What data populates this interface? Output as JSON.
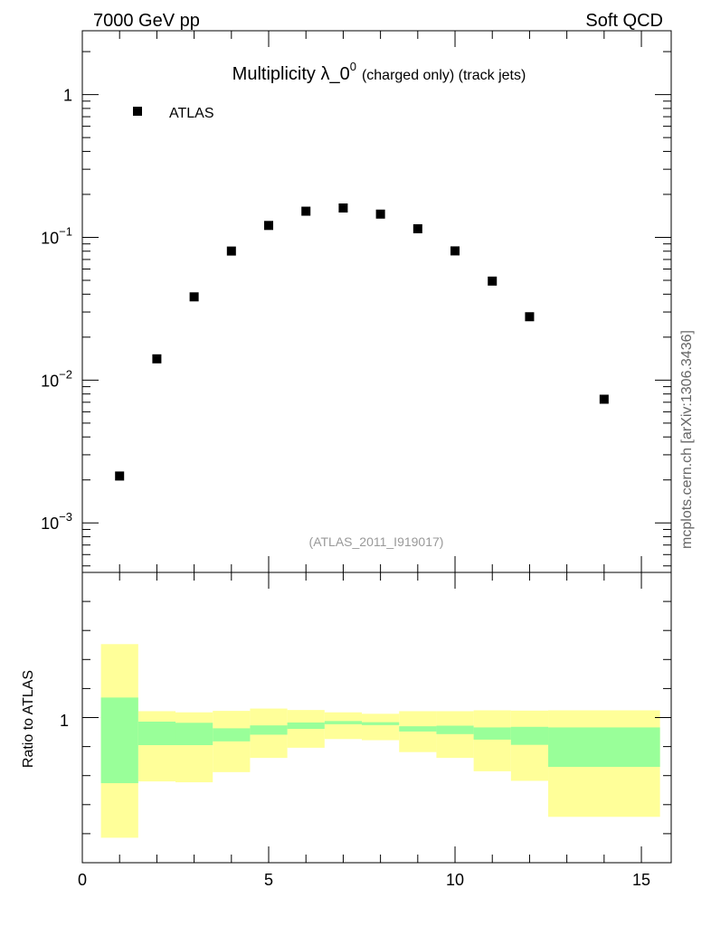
{
  "header": {
    "energy_label": "7000 GeV pp",
    "category_label": "Soft QCD"
  },
  "side_label": "mcplots.cern.ch [arXiv:1306.3436]",
  "chart_data": [
    {
      "type": "scatter",
      "title_main": "Multiplicity λ_0",
      "title_sup": "0",
      "title_rest": "(charged only) (track jets)",
      "watermark": "(ATLAS_2011_I919017)",
      "yscale": "log",
      "xlim": [
        0,
        15.8
      ],
      "ylim": [
        0.00045,
        2.8
      ],
      "ytick_labels": [
        {
          "value": 1,
          "base": "1",
          "exp": ""
        },
        {
          "value": 0.1,
          "base": "10",
          "exp": "−1"
        },
        {
          "value": 0.01,
          "base": "10",
          "exp": "−2"
        },
        {
          "value": 0.001,
          "base": "10",
          "exp": "−3"
        }
      ],
      "legend": {
        "position": "top-left",
        "entries": [
          "ATLAS"
        ]
      },
      "series": [
        {
          "name": "ATLAS",
          "color": "#000000",
          "x": [
            1,
            2,
            3,
            4,
            5,
            6,
            7,
            8,
            9,
            10,
            11,
            12,
            14
          ],
          "y": [
            0.00213,
            0.0141,
            0.0383,
            0.0802,
            0.1212,
            0.1525,
            0.1606,
            0.1455,
            0.1149,
            0.0804,
            0.0494,
            0.0278,
            0.00735
          ]
        }
      ]
    },
    {
      "type": "area",
      "ylabel": "Ratio to ATLAS",
      "xlim": [
        0,
        15.8
      ],
      "ylim": [
        0.5,
        1.5
      ],
      "xtick_labels": [
        "0",
        "5",
        "10",
        "15"
      ],
      "ytick_labels": [
        "1"
      ],
      "colors": {
        "outer_band": "#ffff99",
        "inner_band": "#99ff99"
      },
      "bins": [
        {
          "x0": 0.5,
          "x1": 1.5,
          "outer": [
            0.586,
            1.253
          ],
          "inner": [
            0.774,
            1.069
          ]
        },
        {
          "x0": 1.5,
          "x1": 2.5,
          "outer": [
            0.78,
            1.022
          ],
          "inner": [
            0.905,
            0.986
          ]
        },
        {
          "x0": 2.5,
          "x1": 3.5,
          "outer": [
            0.777,
            1.018
          ],
          "inner": [
            0.905,
            0.982
          ]
        },
        {
          "x0": 3.5,
          "x1": 4.5,
          "outer": [
            0.812,
            1.023
          ],
          "inner": [
            0.918,
            0.963
          ]
        },
        {
          "x0": 4.5,
          "x1": 5.5,
          "outer": [
            0.861,
            1.031
          ],
          "inner": [
            0.941,
            0.973
          ]
        },
        {
          "x0": 5.5,
          "x1": 6.5,
          "outer": [
            0.896,
            1.026
          ],
          "inner": [
            0.961,
            0.983
          ]
        },
        {
          "x0": 6.5,
          "x1": 7.5,
          "outer": [
            0.926,
            1.018
          ],
          "inner": [
            0.977,
            0.988
          ]
        },
        {
          "x0": 7.5,
          "x1": 8.5,
          "outer": [
            0.922,
            1.013
          ],
          "inner": [
            0.974,
            0.984
          ]
        },
        {
          "x0": 8.5,
          "x1": 9.5,
          "outer": [
            0.881,
            1.022
          ],
          "inner": [
            0.952,
            0.97
          ]
        },
        {
          "x0": 9.5,
          "x1": 10.5,
          "outer": [
            0.861,
            1.022
          ],
          "inner": [
            0.943,
            0.972
          ]
        },
        {
          "x0": 10.5,
          "x1": 11.5,
          "outer": [
            0.815,
            1.025
          ],
          "inner": [
            0.924,
            0.966
          ]
        },
        {
          "x0": 11.5,
          "x1": 12.5,
          "outer": [
            0.782,
            1.024
          ],
          "inner": [
            0.906,
            0.968
          ]
        },
        {
          "x0": 12.5,
          "x1": 15.5,
          "outer": [
            0.658,
            1.025
          ],
          "inner": [
            0.83,
            0.966
          ]
        }
      ]
    }
  ]
}
